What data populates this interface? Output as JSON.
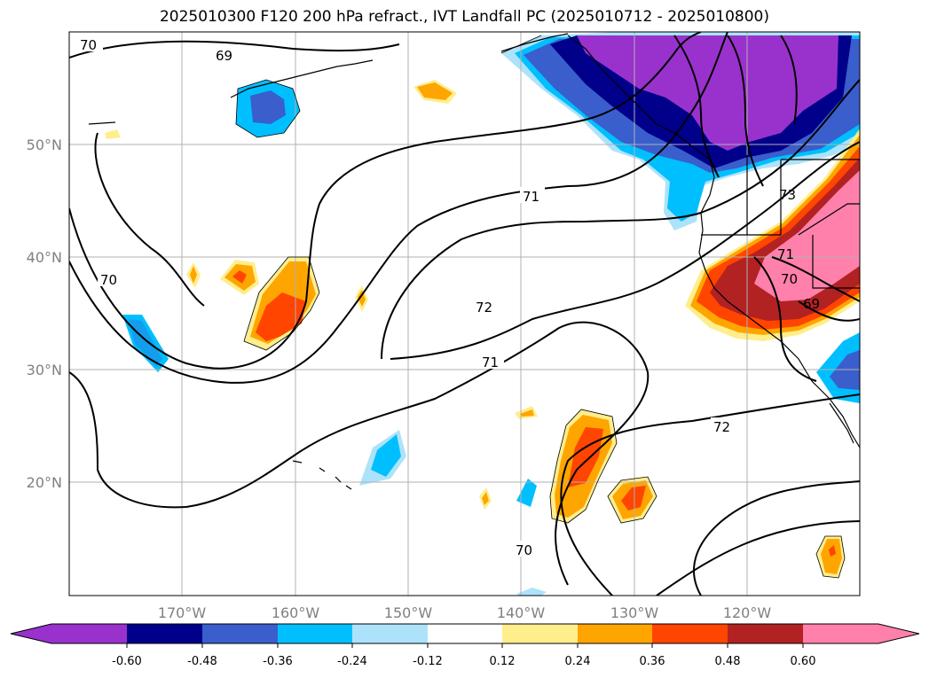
{
  "title": "2025010300 F120 200 hPa refract., IVT Landfall PC (2025010712 - 2025010800)",
  "map": {
    "lat_ticks": [
      "50°N",
      "40°N",
      "30°N",
      "20°N"
    ],
    "lon_ticks": [
      "170°W",
      "160°W",
      "150°W",
      "140°W",
      "130°W",
      "120°W"
    ],
    "extent": {
      "lon_min": -180,
      "lon_max": -110,
      "lat_min": 10,
      "lat_max": 60
    },
    "gridlines": true,
    "contour_labels": [
      "70",
      "69",
      "71",
      "73",
      "70",
      "71",
      "70",
      "72",
      "71",
      "72",
      "70",
      "69",
      "72"
    ],
    "fill_colors": {
      "purple": "#9932CC",
      "navy": "#00008B",
      "royalblue": "#3A5ECC",
      "deepskyblue": "#00BFFF",
      "lightblue": "#ADE3FA",
      "lightyellow": "#FFEE8C",
      "orange": "#FFA500",
      "orangered": "#FF4500",
      "firebrick": "#B22222",
      "pink": "#FF80AB"
    }
  },
  "colorbar": {
    "labels": [
      "-0.60",
      "-0.48",
      "-0.36",
      "-0.24",
      "-0.12",
      "0.12",
      "0.24",
      "0.36",
      "0.48",
      "0.60"
    ],
    "colors": [
      "#9932CC",
      "#00008B",
      "#3A5ECC",
      "#00BFFF",
      "#ADE3FA",
      "#FFFFFF",
      "#FFEE8C",
      "#FFA500",
      "#FF4500",
      "#B22222",
      "#FF80AB"
    ]
  }
}
